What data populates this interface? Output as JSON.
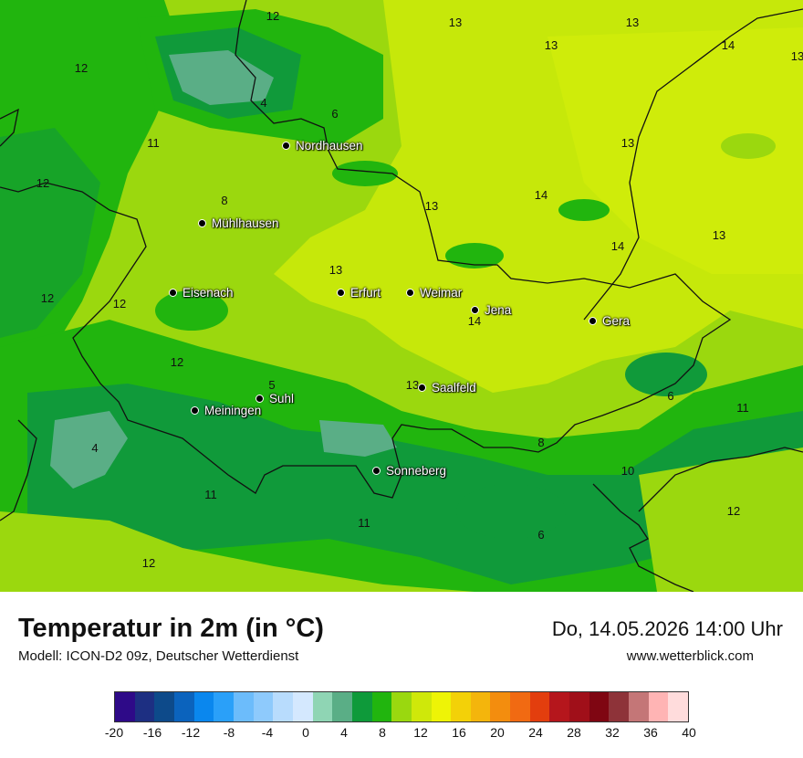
{
  "map": {
    "cities": [
      {
        "name": "Nordhausen"
      },
      {
        "name": "Mühlhausen"
      },
      {
        "name": "Eisenach"
      },
      {
        "name": "Erfurt"
      },
      {
        "name": "Weimar"
      },
      {
        "name": "Jena"
      },
      {
        "name": "Gera"
      },
      {
        "name": "Suhl"
      },
      {
        "name": "Meiningen"
      },
      {
        "name": "Saalfeld"
      },
      {
        "name": "Sonneberg"
      }
    ],
    "values": [
      "12",
      "13",
      "13",
      "14",
      "13",
      "12",
      "4",
      "6",
      "11",
      "13",
      "12",
      "8",
      "14",
      "13",
      "13",
      "14",
      "13",
      "12",
      "12",
      "13",
      "14",
      "12",
      "5",
      "13",
      "6",
      "11",
      "8",
      "10",
      "4",
      "11",
      "11",
      "12",
      "6",
      "12"
    ]
  },
  "header": {
    "title": "Temperatur in 2m (in °C)",
    "subtitle": "Modell: ICON-D2 09z, Deutscher Wetterdienst",
    "datetime": "Do, 14.05.2026 14:00 Uhr",
    "website": "www.wetterblick.com"
  },
  "legend": {
    "ticks": [
      "-20",
      "-16",
      "-12",
      "-8",
      "-4",
      "0",
      "4",
      "8",
      "12",
      "16",
      "20",
      "24",
      "28",
      "32",
      "36",
      "40"
    ],
    "colors": [
      "#2e0a88",
      "#1d2f82",
      "#0d4a8a",
      "#0b63bd",
      "#0a87ee",
      "#2aa0f9",
      "#6cbcfb",
      "#8ecafc",
      "#b8dcfd",
      "#d4e8fe",
      "#8fd5b4",
      "#5aae86",
      "#0e9a3a",
      "#21b50e",
      "#9ad80f",
      "#cfe80a",
      "#eef406",
      "#f3d108",
      "#f4b50c",
      "#f38d0e",
      "#f16a12",
      "#e33e0e",
      "#b5161c",
      "#a00f19",
      "#7f0612",
      "#8e3339",
      "#c47677",
      "#ffb4b4",
      "#ffdcdc"
    ]
  }
}
